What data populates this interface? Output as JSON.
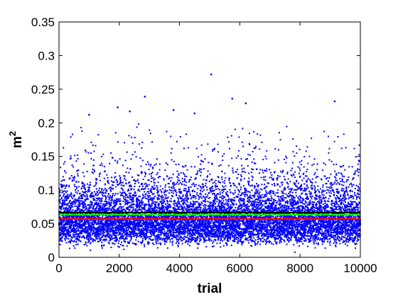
{
  "chart_data": {
    "type": "scatter",
    "title": "",
    "xlabel": "trial",
    "ylabel_base": "m",
    "ylabel_sup": "2",
    "xlim": [
      0,
      10000
    ],
    "ylim": [
      0,
      0.35
    ],
    "xticks": [
      0,
      2000,
      4000,
      6000,
      8000,
      10000
    ],
    "xtick_labels": [
      "0",
      "2000",
      "4000",
      "6000",
      "8000",
      "10000"
    ],
    "yticks": [
      0,
      0.05,
      0.1,
      0.15,
      0.2,
      0.25,
      0.3,
      0.35
    ],
    "ytick_labels": [
      "0",
      "0.05",
      "0.1",
      "0.15",
      "0.2",
      "0.25",
      "0.3",
      "0.35"
    ],
    "grid": false,
    "colors": {
      "points": "#0000ff",
      "line_upper": "#000000",
      "line_middle": "#00ff00",
      "line_lower": "#ff0000"
    },
    "series": [
      {
        "kind": "points",
        "n_trials": 10000,
        "value_range": [
          0,
          0.272
        ],
        "typical_range": [
          0.01,
          0.13
        ],
        "notable_outliers": [
          {
            "x": 5050,
            "y": 0.272
          },
          {
            "x": 2850,
            "y": 0.239
          },
          {
            "x": 5750,
            "y": 0.236
          },
          {
            "x": 6200,
            "y": 0.229
          },
          {
            "x": 9150,
            "y": 0.232
          },
          {
            "x": 1950,
            "y": 0.223
          },
          {
            "x": 2350,
            "y": 0.217
          },
          {
            "x": 3800,
            "y": 0.219
          },
          {
            "x": 1000,
            "y": 0.212
          },
          {
            "x": 4500,
            "y": 0.214
          }
        ]
      },
      {
        "kind": "hline",
        "y": 0.0665
      },
      {
        "kind": "hline",
        "y": 0.0635
      },
      {
        "kind": "hline",
        "y": 0.057
      }
    ]
  }
}
